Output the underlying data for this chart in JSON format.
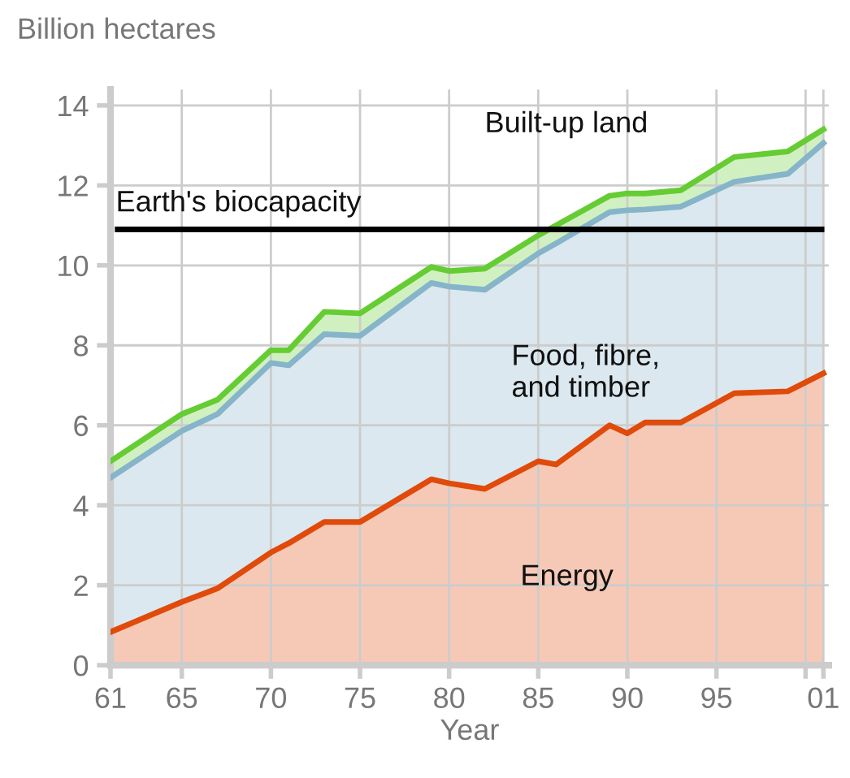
{
  "chart_data": {
    "type": "area",
    "stacked": true,
    "ylabel": "Billion hectares",
    "xlabel": "Year",
    "x": [
      1961,
      1965,
      1967,
      1970,
      1971,
      1973,
      1975,
      1979,
      1980,
      1982,
      1985,
      1986,
      1989,
      1990,
      1991,
      1993,
      1996,
      1999,
      2001
    ],
    "series": [
      {
        "name": "Energy",
        "color": "#e04a0a",
        "values": [
          0.83,
          1.58,
          1.92,
          2.82,
          3.05,
          3.58,
          3.58,
          4.65,
          4.55,
          4.41,
          5.1,
          5.02,
          6.0,
          5.8,
          6.07,
          6.07,
          6.8,
          6.85,
          7.3
        ]
      },
      {
        "name": "Food, fibre,\nand timber",
        "color": "#86b4c9",
        "values": [
          3.86,
          4.28,
          4.36,
          4.74,
          4.45,
          4.7,
          4.66,
          4.91,
          4.92,
          4.98,
          5.2,
          5.53,
          5.33,
          5.58,
          5.33,
          5.4,
          5.29,
          5.44,
          5.76
        ]
      },
      {
        "name": "Built-up land",
        "color": "#66cc33",
        "values": [
          0.41,
          0.42,
          0.36,
          0.32,
          0.38,
          0.56,
          0.56,
          0.4,
          0.39,
          0.53,
          0.45,
          0.45,
          0.41,
          0.42,
          0.4,
          0.41,
          0.62,
          0.56,
          0.34
        ]
      }
    ],
    "ref_lines": [
      {
        "axis": "y",
        "value": 10.9,
        "label": "Earth's biocapacity",
        "color": "#000000"
      }
    ],
    "xlim": [
      1961,
      2001.3
    ],
    "ylim": [
      0,
      14.4
    ],
    "xticks": [
      {
        "value": 1961,
        "label": "61"
      },
      {
        "value": 1965,
        "label": "65"
      },
      {
        "value": 1970,
        "label": "70"
      },
      {
        "value": 1975,
        "label": "75"
      },
      {
        "value": 1980,
        "label": "80"
      },
      {
        "value": 1985,
        "label": "85"
      },
      {
        "value": 1990,
        "label": "90"
      },
      {
        "value": 1995,
        "label": "95"
      },
      {
        "value": 2000,
        "label": null
      },
      {
        "value": 2001,
        "label": "01"
      }
    ],
    "yticks": [
      0,
      2,
      4,
      6,
      8,
      10,
      12,
      14
    ],
    "grid": true,
    "legend": false
  }
}
